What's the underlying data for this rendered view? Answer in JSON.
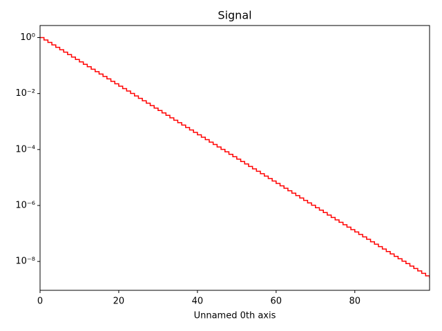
{
  "chart_data": {
    "type": "step",
    "title": "Signal",
    "x_label": "Unnamed 0th axis",
    "log_y": true,
    "drawstyle": "steps-post",
    "x": [
      0,
      1,
      2,
      3,
      4,
      5,
      6,
      7,
      8,
      9,
      10,
      11,
      12,
      13,
      14,
      15,
      16,
      17,
      18,
      19,
      20,
      21,
      22,
      23,
      24,
      25,
      26,
      27,
      28,
      29,
      30,
      31,
      32,
      33,
      34,
      35,
      36,
      37,
      38,
      39,
      40,
      41,
      42,
      43,
      44,
      45,
      46,
      47,
      48,
      49,
      50,
      51,
      52,
      53,
      54,
      55,
      56,
      57,
      58,
      59,
      60,
      61,
      62,
      63,
      64,
      65,
      66,
      67,
      68,
      69,
      70,
      71,
      72,
      73,
      74,
      75,
      76,
      77,
      78,
      79,
      80,
      81,
      82,
      83,
      84,
      85,
      86,
      87,
      88,
      89,
      90,
      91,
      92,
      93,
      94,
      95,
      96,
      97,
      98,
      99
    ],
    "series": [
      {
        "color": "#ff0000",
        "values": [
          1,
          0.819,
          0.67,
          0.549,
          0.449,
          0.368,
          0.301,
          0.247,
          0.202,
          0.165,
          0.135,
          0.111,
          0.0907,
          0.0743,
          0.0608,
          0.0498,
          0.0408,
          0.0334,
          0.0273,
          0.0224,
          0.0183,
          0.015,
          0.0123,
          0.0101,
          0.00823,
          0.00674,
          0.00552,
          0.00452,
          0.0037,
          0.00303,
          0.00248,
          0.00203,
          0.00166,
          0.00136,
          0.00111,
          0.000912,
          0.000747,
          0.000611,
          0.0005,
          0.00041,
          0.000335,
          0.000275,
          0.000225,
          0.000184,
          0.000151,
          0.000123,
          0.000101,
          8.27e-05,
          6.77e-05,
          5.55e-05,
          4.54e-05,
          3.72e-05,
          3.04e-05,
          2.49e-05,
          2.04e-05,
          1.67e-05,
          1.37e-05,
          1.12e-05,
          9.17e-06,
          7.5e-06,
          6.14e-06,
          5.03e-06,
          4.12e-06,
          3.37e-06,
          2.76e-06,
          2.26e-06,
          1.85e-06,
          1.52e-06,
          1.24e-06,
          1.02e-06,
          8.32e-07,
          6.81e-07,
          5.57e-07,
          4.56e-07,
          3.74e-07,
          3.06e-07,
          2.5e-07,
          2.05e-07,
          1.68e-07,
          1.37e-07,
          1.13e-07,
          9.21e-08,
          7.54e-08,
          6.18e-08,
          5.06e-08,
          4.14e-08,
          3.39e-08,
          2.78e-08,
          2.27e-08,
          1.86e-08,
          1.52e-08,
          1.25e-08,
          1.02e-08,
          8.36e-09,
          6.84e-09,
          5.6e-09,
          4.59e-09,
          3.76e-09,
          3.07e-09,
          2.52e-09
        ]
      }
    ],
    "xlim": [
      0,
      99
    ],
    "xticks": [
      0,
      20,
      40,
      60,
      80
    ],
    "ylim": [
      9.3e-10,
      2.7
    ],
    "yticks": [
      {
        "value": 1,
        "label": "10⁰"
      },
      {
        "value": 0.01,
        "label": "10⁻²"
      },
      {
        "value": 0.0001,
        "label": "10⁻⁴"
      },
      {
        "value": 1e-06,
        "label": "10⁻⁶"
      },
      {
        "value": 1e-08,
        "label": "10⁻⁸"
      }
    ]
  }
}
